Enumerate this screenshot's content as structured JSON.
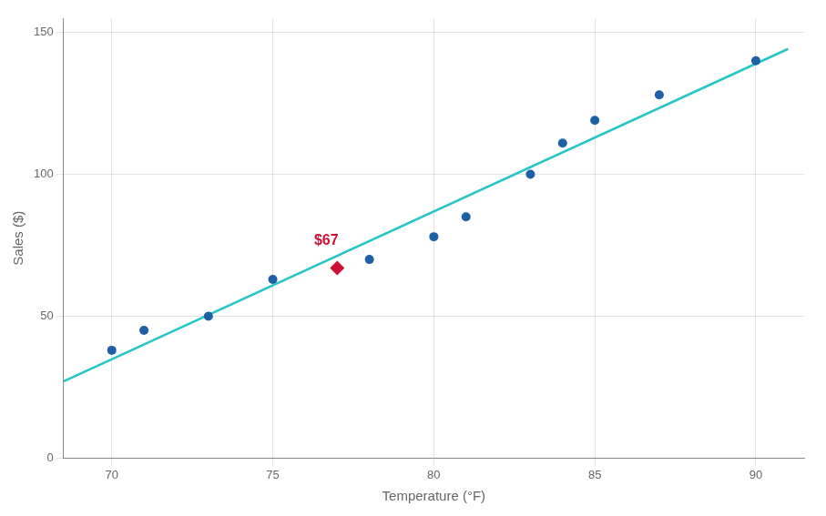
{
  "chart_data": {
    "type": "scatter",
    "xlabel": "Temperature (°F)",
    "ylabel": "Sales ($)",
    "xlim": [
      68.5,
      91.5
    ],
    "ylim": [
      0,
      155
    ],
    "xticks": [
      70,
      75,
      80,
      85,
      90
    ],
    "yticks": [
      0,
      50,
      100,
      150
    ],
    "grid": true,
    "series": [
      {
        "type": "scatter",
        "color": "#1f5fa6",
        "marker": "circle",
        "x": [
          70,
          71,
          73,
          75,
          78,
          80,
          81,
          83,
          84,
          85,
          87,
          90
        ],
        "values": [
          38,
          45,
          50,
          63,
          70,
          78,
          85,
          100,
          111,
          119,
          128,
          140
        ]
      },
      {
        "type": "line",
        "color": "#26c6c6",
        "line_style": "solid",
        "x": [
          68.5,
          91.0
        ],
        "values": [
          26.98882,
          144.17785
        ]
      },
      {
        "type": "scatter",
        "color": "#cc1133",
        "marker": "diamond",
        "x": [
          77
        ],
        "values": [
          67
        ]
      }
    ],
    "annotations": [
      {
        "text": "$67",
        "x": 77,
        "y": 67,
        "color": "#cc1133"
      }
    ]
  }
}
